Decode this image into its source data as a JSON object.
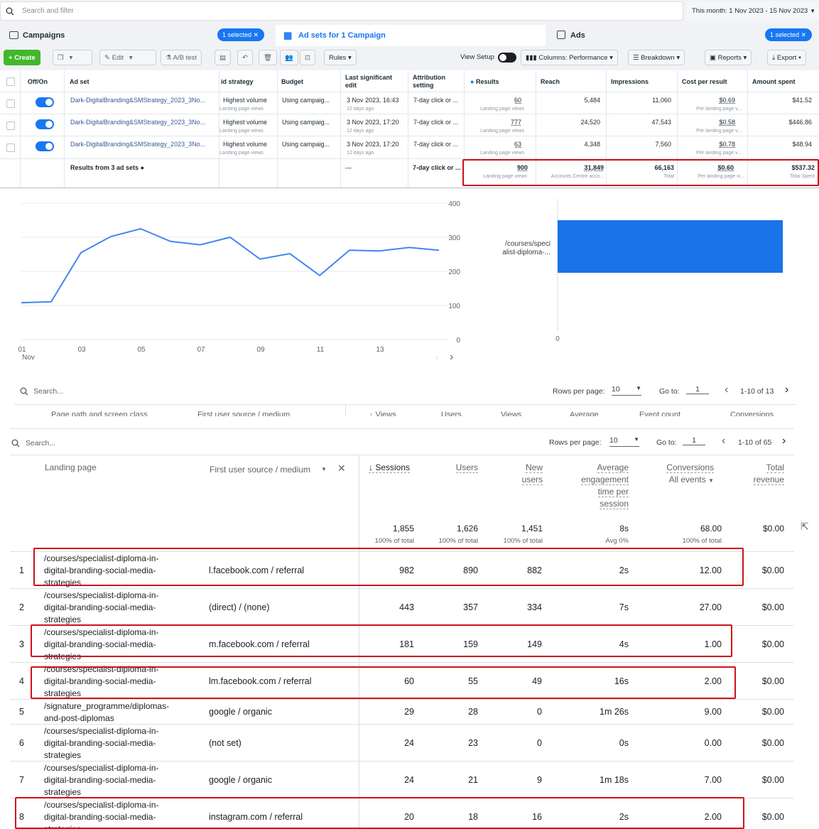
{
  "ads_manager": {
    "search_placeholder": "Search and filter",
    "date_range": "This month: 1 Nov 2023 - 15 Nov 2023",
    "tabs": {
      "campaigns": {
        "label": "Campaigns",
        "badge": "1 selected"
      },
      "adsets": {
        "label": "Ad sets for 1 Campaign"
      },
      "ads": {
        "label": "Ads",
        "badge": "1 selected"
      }
    },
    "toolbar": {
      "create": "Create",
      "edit": "Edit",
      "ab_test": "A/B test",
      "rules": "Rules",
      "view_setup": "View Setup",
      "columns": "Columns: Performance",
      "breakdown": "Breakdown",
      "reports": "Reports",
      "export": "Export"
    },
    "columns": {
      "offon": "Off/On",
      "adset": "Ad set",
      "bid": "id strategy",
      "budget": "Budget",
      "last_edit_1": "Last significant",
      "last_edit_2": "edit",
      "attr_1": "Attribution",
      "attr_2": "setting",
      "results": "Results",
      "reach": "Reach",
      "impressions": "Impressions",
      "cpr": "Cost per result",
      "spent": "Amount spent"
    },
    "rows": [
      {
        "name": "Dark-DigitalBranding&SMStrategy_2023_3No...",
        "bid": "Highest volume",
        "bid_sub": "Landing page views",
        "budget": "Using campaig...",
        "edit": "3 Nov 2023, 16:43",
        "edit_sub": "12 days ago",
        "attr": "7-day click or ...",
        "results": "60",
        "results_sub": "Landing page views",
        "reach": "5,484",
        "impressions": "11,060",
        "cpr": "$0.69",
        "cpr_sub": "Per landing page v...",
        "spent": "$41.52"
      },
      {
        "name": "Dark-DigitalBranding&SMStrategy_2023_3No...",
        "bid": "Highest volume",
        "bid_sub": "Landing page views",
        "budget": "Using campaig...",
        "edit": "3 Nov 2023, 17:20",
        "edit_sub": "12 days ago",
        "attr": "7-day click or ...",
        "results": "777",
        "results_sub": "Landing page views",
        "reach": "24,520",
        "impressions": "47,543",
        "cpr": "$0.58",
        "cpr_sub": "Per landing page v...",
        "spent": "$446.86"
      },
      {
        "name": "Dark-DigitalBranding&SMStrategy_2023_3No...",
        "bid": "Highest volume",
        "bid_sub": "Landing page views",
        "budget": "Using campaig...",
        "edit": "3 Nov 2023, 17:20",
        "edit_sub": "12 days ago",
        "attr": "7-day click or ...",
        "results": "63",
        "results_sub": "Landing page views",
        "reach": "4,348",
        "impressions": "7,560",
        "cpr": "$0.78",
        "cpr_sub": "Per landing page v...",
        "spent": "$48.94"
      }
    ],
    "totals": {
      "label": "Results from 3 ad sets",
      "edit": "—",
      "attr": "7-day click or ...",
      "results": "900",
      "results_sub": "Landing page views",
      "reach": "31,849",
      "reach_sub": "Accounts Centre acco...",
      "impressions": "66,163",
      "impressions_sub": "Total",
      "cpr": "$0.60",
      "cpr_sub": "Per landing page vi...",
      "spent": "$537.32",
      "spent_sub": "Total Spent"
    }
  },
  "ga_chart": {
    "x_ticks": [
      "01",
      "03",
      "05",
      "07",
      "09",
      "11",
      "13"
    ],
    "x_month": "Nov",
    "y_ticks": [
      "400",
      "300",
      "200",
      "100",
      "0"
    ],
    "bar_category": "/courses/speci alist-diploma-...",
    "bar_zero": "0"
  },
  "chart_data": [
    {
      "type": "line",
      "x": [
        "01 Nov",
        "02 Nov",
        "03 Nov",
        "04 Nov",
        "05 Nov",
        "06 Nov",
        "07 Nov",
        "08 Nov",
        "09 Nov",
        "10 Nov",
        "11 Nov",
        "12 Nov",
        "13 Nov",
        "14 Nov",
        "15 Nov"
      ],
      "values": [
        108,
        111,
        255,
        302,
        325,
        288,
        278,
        300,
        236,
        252,
        188,
        262,
        260,
        270,
        262
      ],
      "ylim": [
        0,
        400
      ],
      "grid": true
    },
    {
      "type": "bar",
      "orientation": "horizontal",
      "categories": [
        "/courses/speci alist-diploma-..."
      ],
      "values": [
        1
      ]
    }
  ],
  "ga_upper_table": {
    "search_placeholder": "Search...",
    "rows_per_page_label": "Rows per page:",
    "rows_per_page": "10",
    "goto_label": "Go to:",
    "goto_value": "1",
    "range": "1-10 of 13",
    "hidden_headers": [
      "Page path and screen class",
      "First user source / medium",
      "↓ Views",
      "Users",
      "Views",
      "Average",
      "Event count",
      "Conversions"
    ]
  },
  "ga_table": {
    "search_placeholder": "Search...",
    "rows_per_page_label": "Rows per page:",
    "rows_per_page": "10",
    "goto_label": "Go to:",
    "goto_value": "1",
    "range": "1-10 of 65",
    "headers": {
      "landing": "Landing page",
      "source": "First user source / medium",
      "sessions": "↓ Sessions",
      "users": "Users",
      "new_users_1": "New",
      "new_users_2": "users",
      "aet_1": "Average",
      "aet_2": "engagement",
      "aet_3": "time per",
      "aet_4": "session",
      "conv_1": "Conversions",
      "conv_2": "All events",
      "rev_1": "Total",
      "rev_2": "revenue"
    },
    "totals": {
      "sessions": "1,855",
      "sessions_pct": "100% of total",
      "users": "1,626",
      "users_pct": "100% of total",
      "new_users": "1,451",
      "new_users_pct": "100% of total",
      "aet": "8s",
      "aet_pct": "Avg 0%",
      "conv": "68.00",
      "conv_pct": "100% of total",
      "rev": "$0.00"
    },
    "rows": [
      {
        "n": "1",
        "page": "/courses/specialist-diploma-in-\ndigital-branding-social-media-\nstrategies",
        "src": "l.facebook.com / referral",
        "sessions": "982",
        "users": "890",
        "new_users": "882",
        "aet": "2s",
        "conv": "12.00",
        "rev": "$0.00"
      },
      {
        "n": "2",
        "page": "/courses/specialist-diploma-in-\ndigital-branding-social-media-\nstrategies",
        "src": "(direct) / (none)",
        "sessions": "443",
        "users": "357",
        "new_users": "334",
        "aet": "7s",
        "conv": "27.00",
        "rev": "$0.00"
      },
      {
        "n": "3",
        "page": "/courses/specialist-diploma-in-\ndigital-branding-social-media-\nstrategies",
        "src": "m.facebook.com / referral",
        "sessions": "181",
        "users": "159",
        "new_users": "149",
        "aet": "4s",
        "conv": "1.00",
        "rev": "$0.00"
      },
      {
        "n": "4",
        "page": "/courses/specialist-diploma-in-\ndigital-branding-social-media-\nstrategies",
        "src": "lm.facebook.com / referral",
        "sessions": "60",
        "users": "55",
        "new_users": "49",
        "aet": "16s",
        "conv": "2.00",
        "rev": "$0.00"
      },
      {
        "n": "5",
        "page": "/signature_programme/diplomas-\nand-post-diplomas",
        "src": "google / organic",
        "sessions": "29",
        "users": "28",
        "new_users": "0",
        "aet": "1m 26s",
        "conv": "9.00",
        "rev": "$0.00"
      },
      {
        "n": "6",
        "page": "/courses/specialist-diploma-in-\ndigital-branding-social-media-\nstrategies",
        "src": "(not set)",
        "sessions": "24",
        "users": "23",
        "new_users": "0",
        "aet": "0s",
        "conv": "0.00",
        "rev": "$0.00"
      },
      {
        "n": "7",
        "page": "/courses/specialist-diploma-in-\ndigital-branding-social-media-\nstrategies",
        "src": "google / organic",
        "sessions": "24",
        "users": "21",
        "new_users": "9",
        "aet": "1m 18s",
        "conv": "7.00",
        "rev": "$0.00"
      },
      {
        "n": "8",
        "page": "/courses/specialist-diploma-in-\ndigital-branding-social-media-\nstrategies",
        "src": "instagram.com / referral",
        "sessions": "20",
        "users": "18",
        "new_users": "16",
        "aet": "2s",
        "conv": "2.00",
        "rev": "$0.00"
      }
    ]
  },
  "colors": {
    "fb_blue": "#1877f2",
    "fb_green": "#42b72a",
    "highlight_red": "#d0111b",
    "ga_line": "#4285f4",
    "ga_bar": "#1a73e8"
  }
}
